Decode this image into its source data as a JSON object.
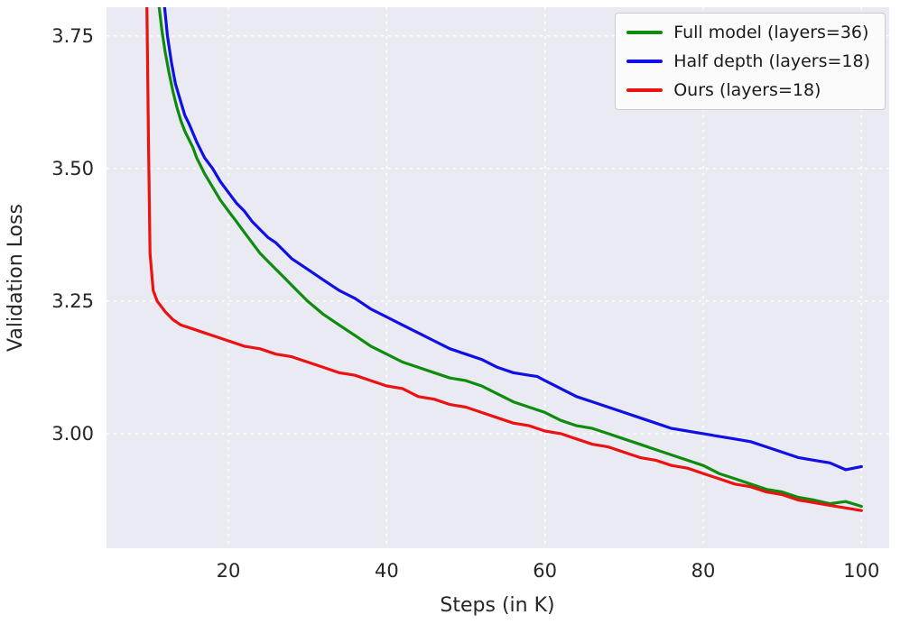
{
  "figure": {
    "background": "#ffffff",
    "plot_background": "#eaeaf2",
    "grid_color": "#ffffff",
    "tick_color": "#262626"
  },
  "chart_data": {
    "type": "line",
    "title": "",
    "xlabel": "Steps (in K)",
    "ylabel": "Validation Loss",
    "xlim": [
      4.6,
      103.5
    ],
    "ylim": [
      2.784,
      3.804
    ],
    "xticks": [
      20,
      40,
      60,
      80,
      100
    ],
    "yticks": [
      3.0,
      3.25,
      3.5,
      3.75
    ],
    "grid": true,
    "grid_style": "dashed",
    "legend_position": "upper right",
    "series": [
      {
        "name": "Full model (layers=36)",
        "color": "#0e8c0e",
        "points": [
          [
            11.2,
            3.81
          ],
          [
            11.6,
            3.76
          ],
          [
            12,
            3.72
          ],
          [
            12.5,
            3.68
          ],
          [
            13,
            3.645
          ],
          [
            13.5,
            3.615
          ],
          [
            14,
            3.59
          ],
          [
            14.5,
            3.57
          ],
          [
            15,
            3.555
          ],
          [
            15.5,
            3.54
          ],
          [
            16,
            3.52
          ],
          [
            17,
            3.49
          ],
          [
            18,
            3.465
          ],
          [
            19,
            3.44
          ],
          [
            20,
            3.42
          ],
          [
            21,
            3.4
          ],
          [
            22,
            3.38
          ],
          [
            23,
            3.36
          ],
          [
            24,
            3.34
          ],
          [
            25,
            3.325
          ],
          [
            26,
            3.31
          ],
          [
            27,
            3.295
          ],
          [
            28,
            3.28
          ],
          [
            29,
            3.265
          ],
          [
            30,
            3.25
          ],
          [
            32,
            3.225
          ],
          [
            34,
            3.205
          ],
          [
            36,
            3.185
          ],
          [
            38,
            3.165
          ],
          [
            40,
            3.15
          ],
          [
            42,
            3.135
          ],
          [
            44,
            3.125
          ],
          [
            46,
            3.115
          ],
          [
            48,
            3.105
          ],
          [
            50,
            3.1
          ],
          [
            52,
            3.09
          ],
          [
            54,
            3.075
          ],
          [
            56,
            3.06
          ],
          [
            58,
            3.05
          ],
          [
            60,
            3.04
          ],
          [
            62,
            3.025
          ],
          [
            64,
            3.015
          ],
          [
            66,
            3.01
          ],
          [
            68,
            3.0
          ],
          [
            70,
            2.99
          ],
          [
            72,
            2.98
          ],
          [
            74,
            2.97
          ],
          [
            76,
            2.96
          ],
          [
            78,
            2.95
          ],
          [
            80,
            2.94
          ],
          [
            82,
            2.925
          ],
          [
            84,
            2.915
          ],
          [
            86,
            2.905
          ],
          [
            88,
            2.895
          ],
          [
            90,
            2.89
          ],
          [
            92,
            2.88
          ],
          [
            94,
            2.875
          ],
          [
            96,
            2.868
          ],
          [
            98,
            2.872
          ],
          [
            100,
            2.863
          ]
        ]
      },
      {
        "name": "Half depth (layers=18)",
        "color": "#0f0fe6",
        "points": [
          [
            11.9,
            3.81
          ],
          [
            12.3,
            3.75
          ],
          [
            12.8,
            3.7
          ],
          [
            13.3,
            3.66
          ],
          [
            14,
            3.625
          ],
          [
            14.5,
            3.6
          ],
          [
            15,
            3.585
          ],
          [
            16,
            3.55
          ],
          [
            17,
            3.52
          ],
          [
            18,
            3.5
          ],
          [
            19,
            3.475
          ],
          [
            20,
            3.455
          ],
          [
            21,
            3.435
          ],
          [
            22,
            3.42
          ],
          [
            23,
            3.4
          ],
          [
            24,
            3.385
          ],
          [
            25,
            3.37
          ],
          [
            26,
            3.36
          ],
          [
            27,
            3.345
          ],
          [
            28,
            3.33
          ],
          [
            29,
            3.32
          ],
          [
            30,
            3.31
          ],
          [
            32,
            3.29
          ],
          [
            34,
            3.27
          ],
          [
            36,
            3.255
          ],
          [
            38,
            3.235
          ],
          [
            40,
            3.22
          ],
          [
            42,
            3.205
          ],
          [
            44,
            3.19
          ],
          [
            46,
            3.175
          ],
          [
            48,
            3.16
          ],
          [
            50,
            3.15
          ],
          [
            52,
            3.14
          ],
          [
            54,
            3.125
          ],
          [
            56,
            3.115
          ],
          [
            58,
            3.11
          ],
          [
            59,
            3.108
          ],
          [
            60,
            3.1
          ],
          [
            62,
            3.085
          ],
          [
            64,
            3.07
          ],
          [
            66,
            3.06
          ],
          [
            68,
            3.05
          ],
          [
            70,
            3.04
          ],
          [
            72,
            3.03
          ],
          [
            74,
            3.02
          ],
          [
            76,
            3.01
          ],
          [
            78,
            3.005
          ],
          [
            80,
            3.0
          ],
          [
            82,
            2.995
          ],
          [
            84,
            2.99
          ],
          [
            86,
            2.985
          ],
          [
            88,
            2.975
          ],
          [
            90,
            2.965
          ],
          [
            92,
            2.955
          ],
          [
            94,
            2.95
          ],
          [
            96,
            2.945
          ],
          [
            98,
            2.932
          ],
          [
            100,
            2.938
          ]
        ]
      },
      {
        "name": "Ours (layers=18)",
        "color": "#ea1212",
        "points": [
          [
            9.7,
            3.81
          ],
          [
            9.9,
            3.55
          ],
          [
            10.1,
            3.34
          ],
          [
            10.5,
            3.27
          ],
          [
            11,
            3.25
          ],
          [
            12,
            3.23
          ],
          [
            13,
            3.215
          ],
          [
            14,
            3.205
          ],
          [
            15,
            3.2
          ],
          [
            16,
            3.195
          ],
          [
            17,
            3.19
          ],
          [
            18,
            3.185
          ],
          [
            20,
            3.175
          ],
          [
            22,
            3.165
          ],
          [
            24,
            3.16
          ],
          [
            26,
            3.15
          ],
          [
            28,
            3.145
          ],
          [
            30,
            3.135
          ],
          [
            32,
            3.125
          ],
          [
            34,
            3.115
          ],
          [
            36,
            3.11
          ],
          [
            38,
            3.1
          ],
          [
            40,
            3.09
          ],
          [
            42,
            3.085
          ],
          [
            44,
            3.07
          ],
          [
            46,
            3.065
          ],
          [
            48,
            3.055
          ],
          [
            50,
            3.05
          ],
          [
            52,
            3.04
          ],
          [
            54,
            3.03
          ],
          [
            56,
            3.02
          ],
          [
            58,
            3.015
          ],
          [
            60,
            3.005
          ],
          [
            62,
            3.0
          ],
          [
            64,
            2.99
          ],
          [
            66,
            2.98
          ],
          [
            68,
            2.975
          ],
          [
            70,
            2.965
          ],
          [
            72,
            2.955
          ],
          [
            74,
            2.95
          ],
          [
            76,
            2.94
          ],
          [
            78,
            2.935
          ],
          [
            80,
            2.925
          ],
          [
            82,
            2.915
          ],
          [
            84,
            2.905
          ],
          [
            86,
            2.9
          ],
          [
            88,
            2.89
          ],
          [
            90,
            2.885
          ],
          [
            92,
            2.875
          ],
          [
            94,
            2.87
          ],
          [
            96,
            2.865
          ],
          [
            98,
            2.86
          ],
          [
            100,
            2.855
          ]
        ]
      }
    ]
  }
}
